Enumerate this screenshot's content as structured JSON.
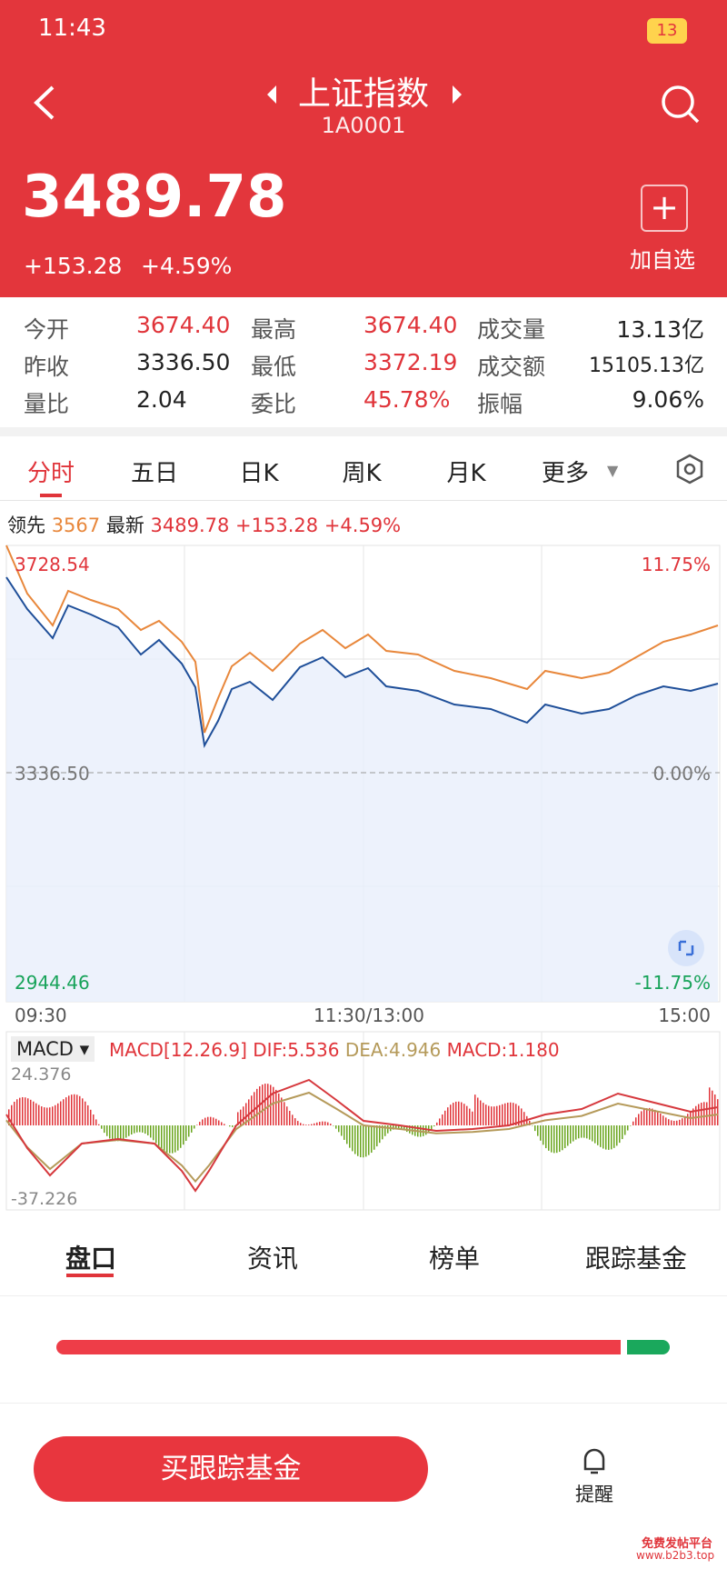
{
  "status_bar": {
    "time": "11:43",
    "battery": "13"
  },
  "header": {
    "title": "上证指数",
    "code": "1A0001",
    "price": "3489.78",
    "change": "+153.28",
    "change_pct": "+4.59%",
    "watch_button": "加自选"
  },
  "stats": {
    "rows": [
      [
        {
          "label": "今开",
          "value": "3674.40"
        },
        {
          "label": "最高",
          "value": "3674.40"
        },
        {
          "label": "成交量",
          "value": "13.13亿"
        }
      ],
      [
        {
          "label": "昨收",
          "value": "3336.50"
        },
        {
          "label": "最低",
          "value": "3372.19"
        },
        {
          "label": "成交额",
          "value": "15105.13亿"
        }
      ],
      [
        {
          "label": "量比",
          "value": "2.04"
        },
        {
          "label": "委比",
          "value": "45.78%"
        },
        {
          "label": "振幅",
          "value": "9.06%"
        }
      ]
    ]
  },
  "period_tabs": [
    "分时",
    "五日",
    "日K",
    "周K",
    "月K",
    "更多"
  ],
  "info_line": {
    "lead_label": "领先",
    "lead_value": "3567",
    "latest_label": "最新",
    "latest_value": "3489.78",
    "change": "+153.28",
    "change_pct": "+4.59%"
  },
  "intraday_chart": {
    "top_price": "3728.54",
    "top_pct": "11.75%",
    "mid_price": "3336.50",
    "mid_pct": "0.00%",
    "bottom_price": "2944.46",
    "bottom_pct": "-11.75%",
    "times": [
      "09:30",
      "11:30/13:00",
      "15:00"
    ]
  },
  "macd_panel": {
    "selector": "MACD",
    "params": "MACD[12.26.9]",
    "dif": "DIF:5.536",
    "dea": "DEA:4.946",
    "macd": "MACD:1.180",
    "top": "24.376",
    "bottom": "-37.226"
  },
  "bottom_tabs": [
    "盘口",
    "资讯",
    "榜单",
    "跟踪基金"
  ],
  "action_button": "买跟踪基金",
  "reminder": "提醒",
  "watermark": {
    "line1": "免费发帖平台",
    "line2": "www.b2b3.top"
  }
}
